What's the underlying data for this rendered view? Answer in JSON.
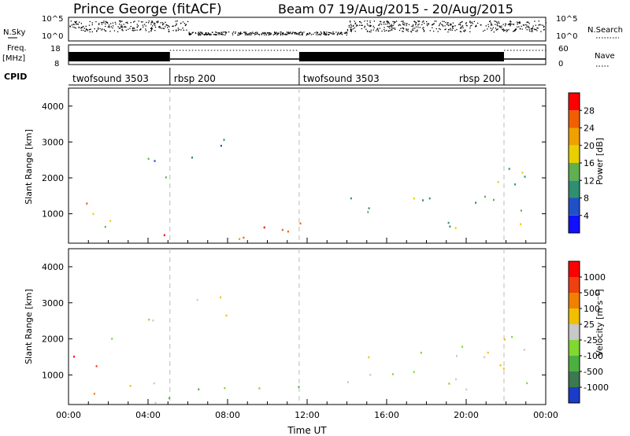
{
  "header": {
    "station": "Prince George (fitACF)",
    "beam_info": "Beam 07  19/Aug/2015 - 20/Aug/2015"
  },
  "strips": {
    "nsky_label": "N.Sky",
    "nsky_ticks": [
      "10^5",
      "10^0"
    ],
    "nsearch_label": "N.Search",
    "nsearch_ticks": [
      "10^5",
      "10^0"
    ],
    "freq_label_1": "Freq.",
    "freq_label_2": "[MHz]",
    "freq_ticks": [
      "18",
      "8"
    ],
    "nave_label": "Nave",
    "nave_ticks": [
      "60",
      "0"
    ],
    "cpid_label": "CPID"
  },
  "cpid_segments": [
    {
      "label": "twofsound 3503",
      "start_h": 0.0,
      "end_h": 5.1
    },
    {
      "label": "rbsp 200",
      "start_h": 5.1,
      "end_h": 11.6
    },
    {
      "label": "twofsound 3503",
      "start_h": 11.6,
      "end_h": 21.9
    },
    {
      "label": "rbsp 200",
      "start_h": 21.9,
      "end_h": 24.0
    }
  ],
  "chart_data": [
    {
      "type": "heatmap",
      "quantity": "Power",
      "ylabel": "Slant Range [km]",
      "xlabel": "",
      "x_range_hours": [
        0,
        24
      ],
      "ylim": [
        180,
        4500
      ],
      "y_ticks": [
        "1000",
        "2000",
        "3000",
        "4000"
      ],
      "colorbar_label": "Power [dB]",
      "colorbar_ticks": [
        "4",
        "8",
        "12",
        "16",
        "20",
        "24",
        "28"
      ],
      "colorbar_colors": [
        "#1010ff",
        "#2050c8",
        "#2f8f6f",
        "#60b050",
        "#e8d000",
        "#f0a000",
        "#f06000",
        "#ff0000"
      ],
      "scatter_regions": [
        {
          "t_start": 0.0,
          "t_end": 1.4,
          "r_lo": 1000,
          "r_hi": 2200,
          "level": 5
        },
        {
          "t_start": 0.5,
          "t_end": 3.4,
          "r_lo": 400,
          "r_hi": 900,
          "level": 4
        },
        {
          "t_start": 2.0,
          "t_end": 5.5,
          "r_lo": 1900,
          "r_hi": 2600,
          "level": 2
        },
        {
          "t_start": 6.0,
          "t_end": 9.5,
          "r_lo": 2500,
          "r_hi": 3300,
          "level": 1
        },
        {
          "t_start": 3.5,
          "t_end": 12.5,
          "r_lo": 200,
          "r_hi": 900,
          "level": 6
        },
        {
          "t_start": 14.0,
          "t_end": 24.0,
          "r_lo": 600,
          "r_hi": 2300,
          "level": 3
        }
      ]
    },
    {
      "type": "heatmap",
      "quantity": "Velocity",
      "ylabel": "Slant Range [km]",
      "xlabel": "Time UT",
      "x_range_hours": [
        0,
        24
      ],
      "x_ticks": [
        "00:00",
        "04:00",
        "08:00",
        "12:00",
        "16:00",
        "20:00",
        "00:00"
      ],
      "ylim": [
        180,
        4500
      ],
      "y_ticks": [
        "1000",
        "2000",
        "3000",
        "4000"
      ],
      "colorbar_label": "Velocity [m s⁻¹]",
      "colorbar_ticks": [
        "1000",
        "500",
        "100",
        "25",
        "-25",
        "-100",
        "-500",
        "-1000"
      ],
      "colorbar_colors": [
        "#1a3cc8",
        "#3c7850",
        "#4cb040",
        "#80d830",
        "#c8c8c8",
        "#f0c000",
        "#f08000",
        "#f04010",
        "#ff0000"
      ],
      "scatter_regions": [
        {
          "t_start": 0.0,
          "t_end": 1.4,
          "r_lo": 1000,
          "r_hi": 2200,
          "level": 7
        },
        {
          "t_start": 0.5,
          "t_end": 3.4,
          "r_lo": 400,
          "r_hi": 900,
          "level": 6
        },
        {
          "t_start": 2.0,
          "t_end": 5.5,
          "r_lo": 1900,
          "r_hi": 2600,
          "level": 4
        },
        {
          "t_start": 6.0,
          "t_end": 9.5,
          "r_lo": 2500,
          "r_hi": 3300,
          "level": 4
        },
        {
          "t_start": 3.5,
          "t_end": 12.5,
          "r_lo": 200,
          "r_hi": 900,
          "level": 3
        },
        {
          "t_start": 14.0,
          "t_end": 24.0,
          "r_lo": 600,
          "r_hi": 2300,
          "level": 4
        }
      ]
    }
  ]
}
